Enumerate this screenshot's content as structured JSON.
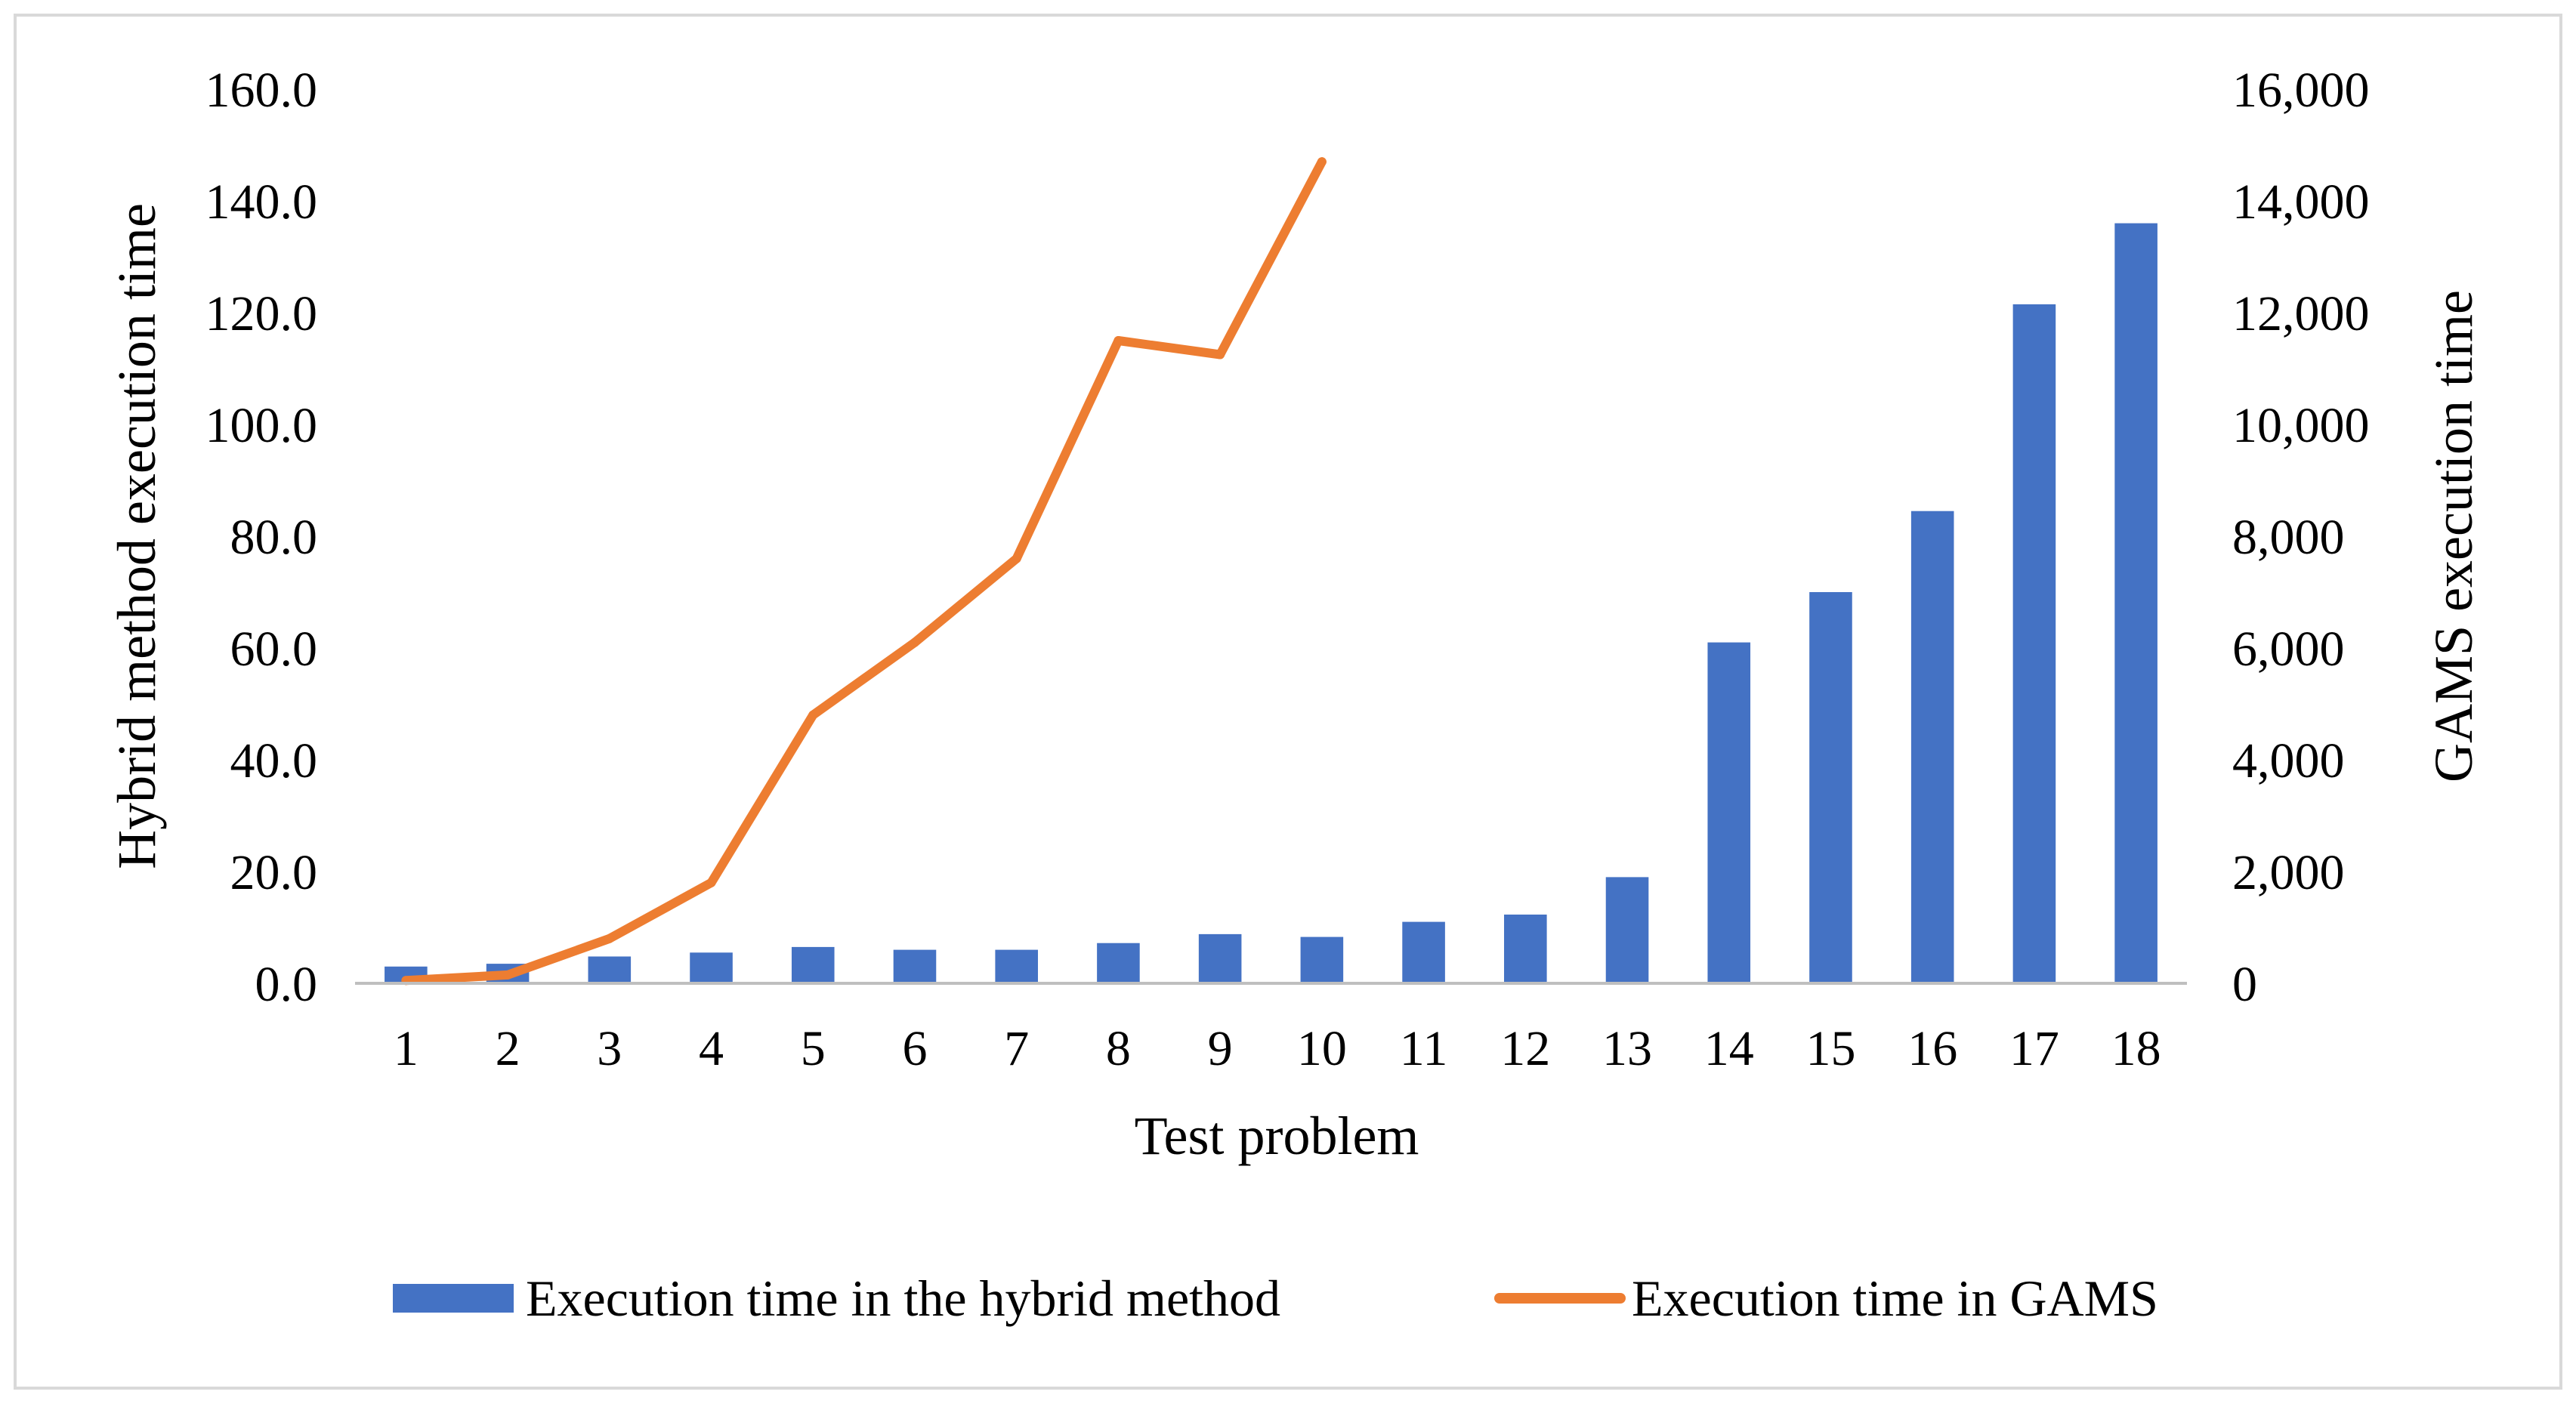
{
  "chart_data": {
    "type": "bar",
    "categories": [
      "1",
      "2",
      "3",
      "4",
      "5",
      "6",
      "7",
      "8",
      "9",
      "10",
      "11",
      "12",
      "13",
      "14",
      "15",
      "16",
      "17",
      "18"
    ],
    "series": [
      {
        "name": "Execution time in the hybrid method",
        "type": "bar",
        "axis": "left",
        "color": "#4472C4",
        "values": [
          3.0,
          3.5,
          4.8,
          5.5,
          6.5,
          6.0,
          6.0,
          7.2,
          8.8,
          8.3,
          11.0,
          12.3,
          19.0,
          61.0,
          70.0,
          84.5,
          121.5,
          136.0
        ]
      },
      {
        "name": "Execution time in GAMS",
        "type": "line",
        "axis": "right",
        "color": "#ED7D31",
        "values": [
          50,
          150,
          800,
          1800,
          4800,
          6100,
          7600,
          11500,
          11250,
          14700,
          null,
          null,
          null,
          null,
          null,
          null,
          null,
          null
        ]
      }
    ],
    "xlabel": "Test problem",
    "ylabel": "Hybrid method execution time",
    "y2label": "GAMS execution time",
    "ylim": [
      0,
      160
    ],
    "y2lim": [
      0,
      16000
    ],
    "yticks": [
      "0.0",
      "20.0",
      "40.0",
      "60.0",
      "80.0",
      "100.0",
      "120.0",
      "140.0",
      "160.0"
    ],
    "y2ticks": [
      "0",
      "2,000",
      "4,000",
      "6,000",
      "8,000",
      "10,000",
      "12,000",
      "14,000",
      "16,000"
    ],
    "grid": false,
    "legend": "bottom"
  }
}
